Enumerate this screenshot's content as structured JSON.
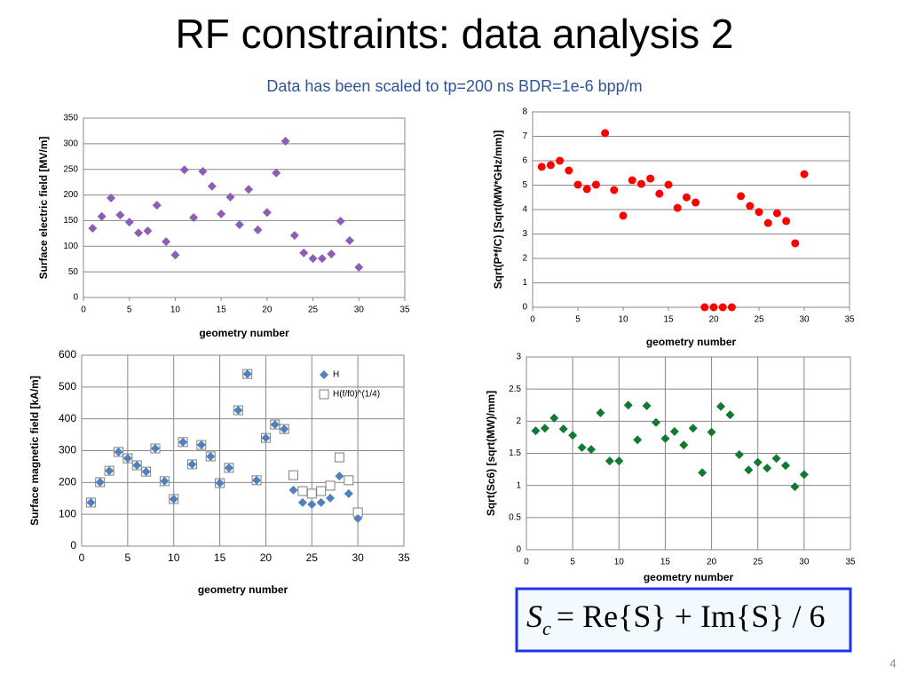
{
  "title": "RF constraints: data analysis 2",
  "subtitle": "Data has been scaled to tp=200 ns BDR=1e-6 bpp/m",
  "formula": {
    "symbol": "S",
    "subscript": "c",
    "expression": "= Re{S} + Im{S} / 6"
  },
  "page_number": "4",
  "chart_data": [
    {
      "type": "scatter",
      "ylabel": "Surface electric field [MV/m]",
      "xlabel": "geometry number",
      "xlim": [
        0,
        35
      ],
      "xticks": [
        0,
        5,
        10,
        15,
        20,
        25,
        30,
        35
      ],
      "ylim": [
        0,
        350
      ],
      "yticks": [
        0,
        50,
        100,
        150,
        200,
        250,
        300,
        350
      ],
      "grid": "y",
      "x": [
        1,
        2,
        3,
        4,
        5,
        6,
        7,
        8,
        9,
        10,
        11,
        12,
        13,
        14,
        15,
        16,
        17,
        18,
        19,
        20,
        21,
        22,
        23,
        24,
        25,
        26,
        27,
        28,
        29,
        30
      ],
      "series": [
        {
          "color": "#8e5db5",
          "marker": "diamond",
          "values": [
            135,
            158,
            194,
            161,
            147,
            126,
            130,
            180,
            109,
            83,
            249,
            156,
            246,
            217,
            163,
            196,
            142,
            211,
            132,
            166,
            243,
            305,
            121,
            87,
            76,
            76,
            85,
            149,
            111,
            59
          ]
        }
      ]
    },
    {
      "type": "scatter",
      "ylabel": "Sqrt(P*f/C) [Sqrt(MW*GHz/mm)]",
      "xlabel": "geometry number",
      "xlim": [
        0,
        35
      ],
      "xticks": [
        0,
        5,
        10,
        15,
        20,
        25,
        30,
        35
      ],
      "ylim": [
        0,
        8
      ],
      "yticks": [
        0,
        1,
        2,
        3,
        4,
        5,
        6,
        7,
        8
      ],
      "grid": "y",
      "x": [
        1,
        2,
        3,
        4,
        5,
        6,
        7,
        8,
        9,
        10,
        11,
        12,
        13,
        14,
        15,
        16,
        17,
        18,
        19,
        20,
        21,
        22,
        23,
        24,
        25,
        26,
        27,
        28,
        29,
        30
      ],
      "series": [
        {
          "color": "#ff0000",
          "marker": "circle",
          "values": [
            5.75,
            5.82,
            6.0,
            5.6,
            5.02,
            4.84,
            5.02,
            7.13,
            4.8,
            3.75,
            5.2,
            5.05,
            5.27,
            4.65,
            5.02,
            4.07,
            4.5,
            4.29,
            0,
            0,
            0,
            0,
            4.55,
            4.15,
            3.9,
            3.45,
            3.85,
            3.53,
            2.62,
            5.45
          ]
        }
      ]
    },
    {
      "type": "scatter",
      "ylabel": "Surface magnetic field [kA/m]",
      "xlabel": "geometry number",
      "xlim": [
        0,
        35
      ],
      "xticks": [
        0,
        5,
        10,
        15,
        20,
        25,
        30,
        35
      ],
      "ylim": [
        0,
        600
      ],
      "yticks": [
        0,
        100,
        200,
        300,
        400,
        500,
        600
      ],
      "grid": "both",
      "legend": "upper right",
      "x": [
        1,
        2,
        3,
        4,
        5,
        6,
        7,
        8,
        9,
        10,
        11,
        12,
        13,
        14,
        15,
        16,
        17,
        18,
        19,
        20,
        21,
        22,
        23,
        24,
        25,
        26,
        27,
        28,
        29,
        30
      ],
      "series": [
        {
          "name": "H(f/f0)^(1/4)",
          "color": "#7f7f7f",
          "marker": "square-open",
          "values": [
            137,
            201,
            237,
            296,
            276,
            254,
            234,
            307,
            204,
            148,
            327,
            257,
            318,
            282,
            198,
            246,
            427,
            541,
            207,
            340,
            382,
            368,
            223,
            173,
            165,
            173,
            190,
            279,
            207,
            106
          ]
        },
        {
          "name": "H",
          "color": "#4f81bd",
          "marker": "diamond",
          "values": [
            137,
            201,
            237,
            296,
            276,
            254,
            234,
            307,
            204,
            148,
            327,
            257,
            318,
            282,
            198,
            246,
            427,
            541,
            207,
            340,
            382,
            368,
            176,
            137,
            131,
            137,
            151,
            220,
            165,
            87
          ]
        }
      ]
    },
    {
      "type": "scatter",
      "ylabel": "Sqrt(Sc6) [sqrt(MW)/mm]",
      "xlabel": "geometry number",
      "xlim": [
        0,
        35
      ],
      "xticks": [
        0,
        5,
        10,
        15,
        20,
        25,
        30,
        35
      ],
      "ylim": [
        0,
        3
      ],
      "yticks": [
        0,
        0.5,
        1,
        1.5,
        2,
        2.5,
        3
      ],
      "grid": "both",
      "x": [
        1,
        2,
        3,
        4,
        5,
        6,
        7,
        8,
        9,
        10,
        11,
        12,
        13,
        14,
        15,
        16,
        17,
        18,
        19,
        20,
        21,
        22,
        23,
        24,
        25,
        26,
        27,
        28,
        29,
        30
      ],
      "series": [
        {
          "color": "#107a30",
          "marker": "diamond",
          "values": [
            1.85,
            1.89,
            2.05,
            1.88,
            1.78,
            1.59,
            1.56,
            2.13,
            1.38,
            1.38,
            2.25,
            1.71,
            2.24,
            1.98,
            1.73,
            1.84,
            1.63,
            1.89,
            1.2,
            1.83,
            2.23,
            2.1,
            1.48,
            1.24,
            1.36,
            1.27,
            1.42,
            1.31,
            0.98,
            1.17
          ]
        }
      ]
    }
  ]
}
